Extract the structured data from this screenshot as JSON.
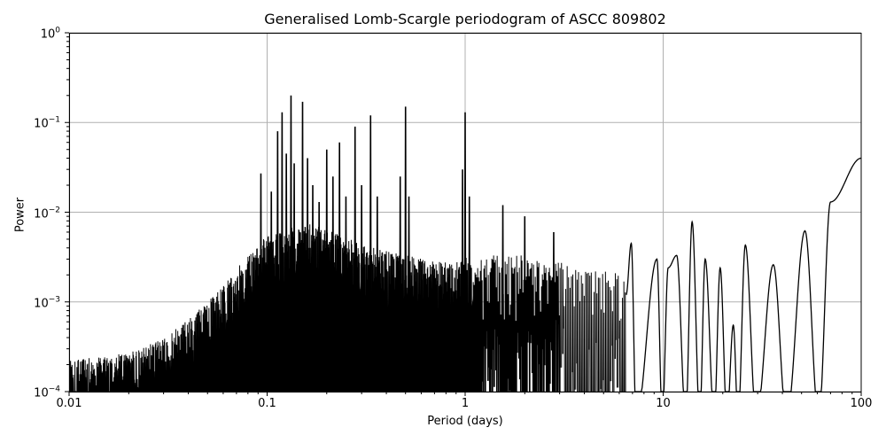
{
  "chart_data": {
    "type": "line",
    "title": "Generalised Lomb-Scargle periodogram of ASCC 809802",
    "xlabel": "Period (days)",
    "ylabel": "Power",
    "xscale": "log",
    "yscale": "log",
    "xlim": [
      0.01,
      100
    ],
    "ylim": [
      0.0001,
      1
    ],
    "grid": true,
    "legend": null,
    "line_color": "#000000",
    "grid_color": "#b0b0b0",
    "xticks": [
      {
        "value": 0.01,
        "label": "0.01"
      },
      {
        "value": 0.1,
        "label": "0.1"
      },
      {
        "value": 1,
        "label": "1"
      },
      {
        "value": 10,
        "label": "10"
      },
      {
        "value": 100,
        "label": "100"
      }
    ],
    "yticks": [
      {
        "value": 1,
        "base": "10",
        "exp": "0"
      },
      {
        "value": 0.1,
        "base": "10",
        "exp": "−1"
      },
      {
        "value": 0.01,
        "base": "10",
        "exp": "−2"
      },
      {
        "value": 0.001,
        "base": "10",
        "exp": "−3"
      },
      {
        "value": 0.0001,
        "base": "10",
        "exp": "−4"
      }
    ],
    "noise_envelope": {
      "description": "dense forest of aliased peaks; approximate upper envelope of power vs period",
      "period": [
        0.01,
        0.02,
        0.03,
        0.05,
        0.08,
        0.1,
        0.15,
        0.2,
        0.3,
        0.5,
        0.8,
        1.0,
        1.5,
        2.0,
        3.0,
        5.0
      ],
      "power": [
        0.0002,
        0.00025,
        0.00035,
        0.0009,
        0.003,
        0.005,
        0.007,
        0.006,
        0.004,
        0.003,
        0.0025,
        0.003,
        0.003,
        0.003,
        0.0025,
        0.002
      ]
    },
    "peaks": [
      {
        "period": 0.093,
        "power": 0.027
      },
      {
        "period": 0.105,
        "power": 0.017
      },
      {
        "period": 0.113,
        "power": 0.08
      },
      {
        "period": 0.119,
        "power": 0.13
      },
      {
        "period": 0.125,
        "power": 0.045
      },
      {
        "period": 0.132,
        "power": 0.2
      },
      {
        "period": 0.137,
        "power": 0.035
      },
      {
        "period": 0.151,
        "power": 0.17
      },
      {
        "period": 0.16,
        "power": 0.04
      },
      {
        "period": 0.17,
        "power": 0.02
      },
      {
        "period": 0.183,
        "power": 0.013
      },
      {
        "period": 0.2,
        "power": 0.05
      },
      {
        "period": 0.215,
        "power": 0.025
      },
      {
        "period": 0.232,
        "power": 0.06
      },
      {
        "period": 0.25,
        "power": 0.015
      },
      {
        "period": 0.278,
        "power": 0.09
      },
      {
        "period": 0.3,
        "power": 0.02
      },
      {
        "period": 0.333,
        "power": 0.12
      },
      {
        "period": 0.36,
        "power": 0.015
      },
      {
        "period": 0.47,
        "power": 0.025
      },
      {
        "period": 0.5,
        "power": 0.15
      },
      {
        "period": 0.52,
        "power": 0.015
      },
      {
        "period": 0.97,
        "power": 0.03
      },
      {
        "period": 1.0,
        "power": 0.13
      },
      {
        "period": 1.05,
        "power": 0.015
      },
      {
        "period": 1.55,
        "power": 0.012
      },
      {
        "period": 2.0,
        "power": 0.009
      },
      {
        "period": 2.8,
        "power": 0.006
      }
    ],
    "smooth_lobes": [
      {
        "period": 6.9,
        "power": 0.0045
      },
      {
        "period": 9.3,
        "power": 0.003
      },
      {
        "period": 10.6,
        "power": 0.0024
      },
      {
        "period": 11.7,
        "power": 0.0033
      },
      {
        "period": 14.0,
        "power": 0.0078
      },
      {
        "period": 16.3,
        "power": 0.003
      },
      {
        "period": 19.4,
        "power": 0.0024
      },
      {
        "period": 22.6,
        "power": 0.00055
      },
      {
        "period": 26.0,
        "power": 0.0043
      },
      {
        "period": 36.0,
        "power": 0.0026
      },
      {
        "period": 52.0,
        "power": 0.0062
      },
      {
        "period": 70.0,
        "power": 0.013
      },
      {
        "period": 100.0,
        "power": 0.04
      }
    ],
    "minima_to_floor": [
      7.3,
      9.9,
      13.0,
      15.3,
      18.1,
      21.0,
      23.9,
      29.5,
      42.0,
      61.0
    ]
  }
}
